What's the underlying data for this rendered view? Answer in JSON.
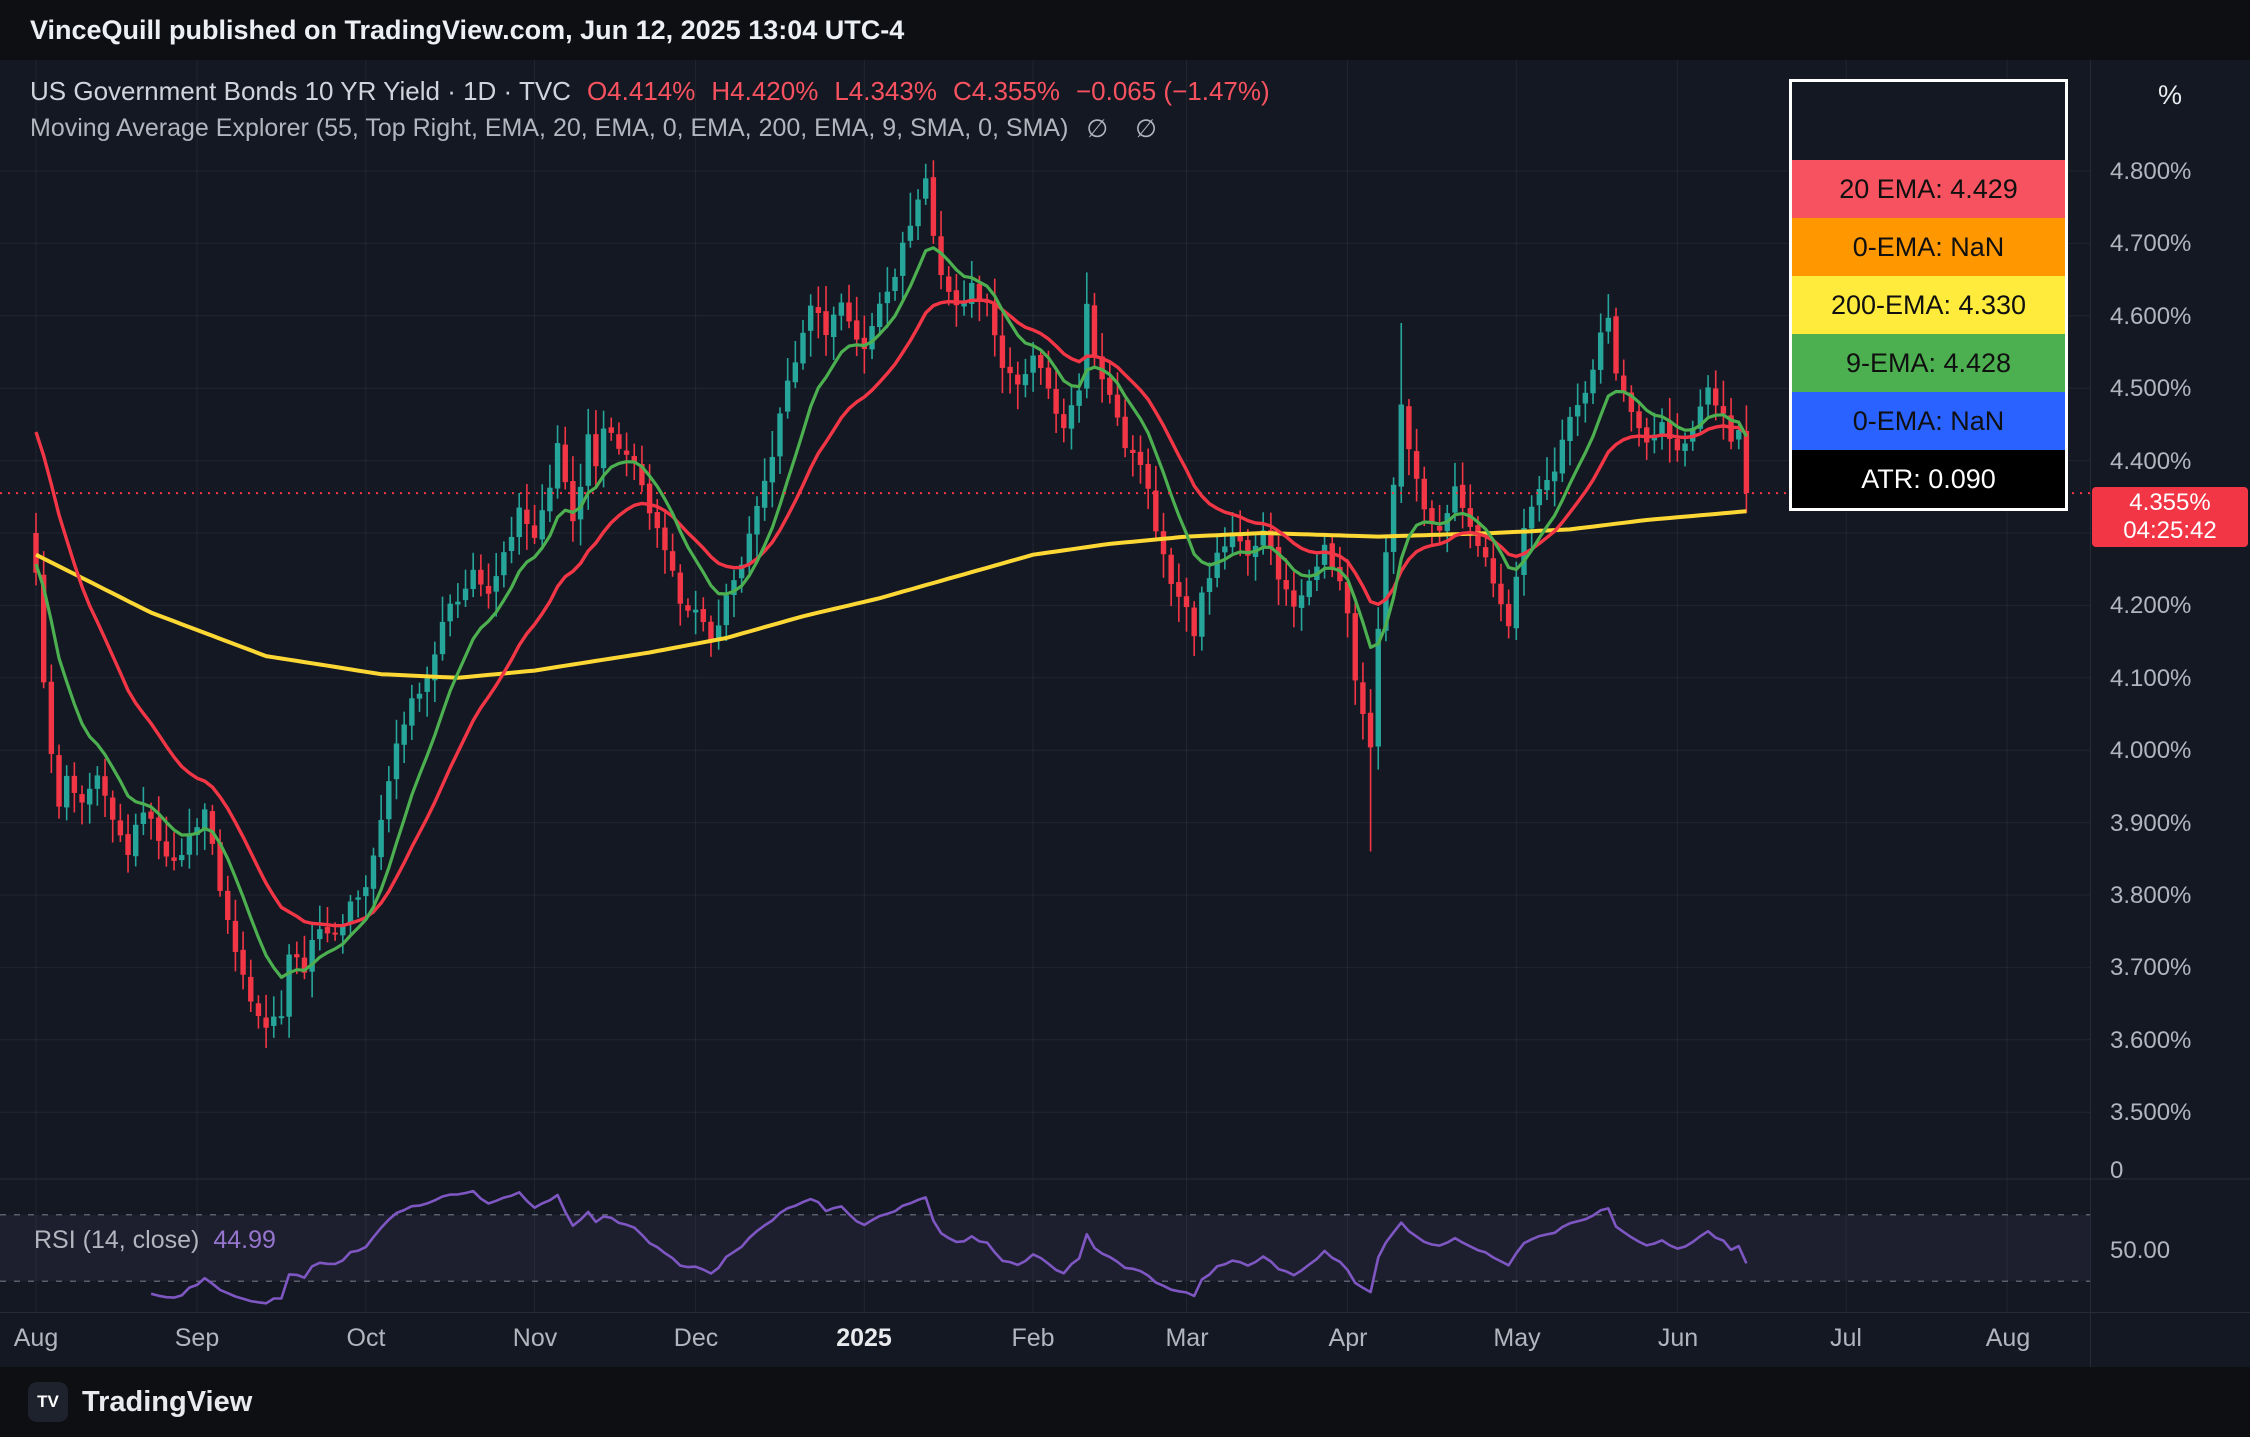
{
  "banner": {
    "text": "VinceQuill published on TradingView.com, Jun 12, 2025 13:04 UTC-4"
  },
  "title": {
    "symbol": "US Government Bonds 10 YR Yield · 1D · TVC",
    "open": "O4.414%",
    "high": "H4.420%",
    "low": "L4.343%",
    "close": "C4.355%",
    "change": "−0.065 (−1.47%)",
    "indicator": "Moving Average Explorer (55, Top Right, EMA, 20, EMA, 0, EMA, 200, EMA, 9, SMA, 0, SMA)",
    "hidden_icons": "∅ ∅"
  },
  "legend": {
    "rows": [
      {
        "label": "20 EMA: 4.429",
        "bg": "#f7525f",
        "fg": "#101010"
      },
      {
        "label": "0-EMA: NaN",
        "bg": "#ff9800",
        "fg": "#101010"
      },
      {
        "label": "200-EMA: 4.330",
        "bg": "#ffeb3b",
        "fg": "#101010"
      },
      {
        "label": "9-EMA: 4.428",
        "bg": "#4caf50",
        "fg": "#101010"
      },
      {
        "label": "0-EMA: NaN",
        "bg": "#2962ff",
        "fg": "#101010"
      },
      {
        "label": "ATR: 0.090",
        "bg": "#000000",
        "fg": "#ffffff"
      }
    ]
  },
  "price_axis": {
    "unit": "%",
    "labels": [
      "4.800%",
      "4.700%",
      "4.600%",
      "4.500%",
      "4.400%",
      "4.200%",
      "4.100%",
      "4.000%",
      "3.900%",
      "3.800%",
      "3.700%",
      "3.600%",
      "3.500%"
    ],
    "zero_label": "0",
    "rsi_label": "50.00",
    "badge": {
      "price": "4.355%",
      "countdown": "04:25:42"
    }
  },
  "time_axis": {
    "labels": [
      "Aug",
      "Sep",
      "Oct",
      "Nov",
      "Dec",
      "2025",
      "Feb",
      "Mar",
      "Apr",
      "May",
      "Jun",
      "Jul",
      "Aug"
    ]
  },
  "rsi_pane": {
    "label": "RSI (14, close)",
    "value": "44.99"
  },
  "footer": {
    "brand": "TradingView",
    "logo": "TV"
  },
  "colors": {
    "up_candle": "#26a69a",
    "down_candle": "#f23645",
    "ema20": "#f23645",
    "ema9": "#4caf50",
    "ema200": "#fdd835",
    "rsi_line": "#7e57c2",
    "price_line": "#f23645",
    "grid": "rgba(255,255,255,0.06)"
  },
  "chart_data": {
    "type": "candlestick",
    "title": "US Government Bonds 10 YR Yield, 1D, TVC",
    "ylabel": "Yield %",
    "ylim": [
      3.45,
      4.85
    ],
    "y_ticks": [
      4.8,
      4.7,
      4.6,
      4.5,
      4.4,
      4.3,
      4.2,
      4.1,
      4.0,
      3.9,
      3.8,
      3.7,
      3.6,
      3.5
    ],
    "last_price": 4.355,
    "total_days": 224,
    "months": [
      {
        "label": "Aug",
        "day": 0
      },
      {
        "label": "Sep",
        "day": 21
      },
      {
        "label": "Oct",
        "day": 43
      },
      {
        "label": "Nov",
        "day": 65
      },
      {
        "label": "Dec",
        "day": 86
      },
      {
        "label": "2025",
        "day": 108
      },
      {
        "label": "Feb",
        "day": 130
      },
      {
        "label": "Mar",
        "day": 150
      },
      {
        "label": "Apr",
        "day": 171
      },
      {
        "label": "May",
        "day": 193
      },
      {
        "label": "Jun",
        "day": 214
      },
      {
        "label": "Jul",
        "day": 236
      },
      {
        "label": "Aug",
        "day": 257
      }
    ],
    "close_anchors": [
      [
        0,
        4.24
      ],
      [
        1,
        4.1
      ],
      [
        2,
        3.99
      ],
      [
        3,
        3.92
      ],
      [
        4,
        3.96
      ],
      [
        6,
        3.92
      ],
      [
        8,
        3.96
      ],
      [
        10,
        3.9
      ],
      [
        12,
        3.86
      ],
      [
        14,
        3.92
      ],
      [
        16,
        3.88
      ],
      [
        18,
        3.84
      ],
      [
        20,
        3.88
      ],
      [
        22,
        3.92
      ],
      [
        24,
        3.81
      ],
      [
        26,
        3.72
      ],
      [
        28,
        3.66
      ],
      [
        30,
        3.62
      ],
      [
        32,
        3.64
      ],
      [
        33,
        3.72
      ],
      [
        35,
        3.7
      ],
      [
        37,
        3.76
      ],
      [
        39,
        3.74
      ],
      [
        41,
        3.79
      ],
      [
        43,
        3.81
      ],
      [
        45,
        3.9
      ],
      [
        47,
        4.01
      ],
      [
        49,
        4.07
      ],
      [
        51,
        4.1
      ],
      [
        53,
        4.18
      ],
      [
        55,
        4.21
      ],
      [
        57,
        4.25
      ],
      [
        59,
        4.21
      ],
      [
        61,
        4.27
      ],
      [
        63,
        4.33
      ],
      [
        65,
        4.29
      ],
      [
        67,
        4.36
      ],
      [
        68,
        4.43
      ],
      [
        69,
        4.37
      ],
      [
        70,
        4.31
      ],
      [
        71,
        4.36
      ],
      [
        72,
        4.43
      ],
      [
        73,
        4.4
      ],
      [
        74,
        4.45
      ],
      [
        76,
        4.42
      ],
      [
        78,
        4.39
      ],
      [
        80,
        4.33
      ],
      [
        82,
        4.27
      ],
      [
        84,
        4.21
      ],
      [
        86,
        4.19
      ],
      [
        88,
        4.15
      ],
      [
        90,
        4.21
      ],
      [
        92,
        4.26
      ],
      [
        94,
        4.33
      ],
      [
        96,
        4.41
      ],
      [
        98,
        4.51
      ],
      [
        100,
        4.57
      ],
      [
        101,
        4.62
      ],
      [
        103,
        4.58
      ],
      [
        105,
        4.62
      ],
      [
        107,
        4.57
      ],
      [
        108,
        4.55
      ],
      [
        110,
        4.62
      ],
      [
        112,
        4.66
      ],
      [
        114,
        4.73
      ],
      [
        116,
        4.79
      ],
      [
        117,
        4.71
      ],
      [
        118,
        4.66
      ],
      [
        120,
        4.61
      ],
      [
        122,
        4.64
      ],
      [
        124,
        4.62
      ],
      [
        126,
        4.53
      ],
      [
        128,
        4.5
      ],
      [
        130,
        4.54
      ],
      [
        132,
        4.5
      ],
      [
        134,
        4.44
      ],
      [
        136,
        4.5
      ],
      [
        137,
        4.62
      ],
      [
        138,
        4.55
      ],
      [
        140,
        4.49
      ],
      [
        142,
        4.42
      ],
      [
        144,
        4.4
      ],
      [
        146,
        4.31
      ],
      [
        148,
        4.23
      ],
      [
        150,
        4.2
      ],
      [
        151,
        4.16
      ],
      [
        152,
        4.22
      ],
      [
        154,
        4.27
      ],
      [
        156,
        4.3
      ],
      [
        158,
        4.27
      ],
      [
        160,
        4.31
      ],
      [
        162,
        4.24
      ],
      [
        164,
        4.2
      ],
      [
        166,
        4.24
      ],
      [
        168,
        4.28
      ],
      [
        170,
        4.23
      ],
      [
        171,
        4.19
      ],
      [
        172,
        4.1
      ],
      [
        174,
        4.0
      ],
      [
        175,
        4.17
      ],
      [
        176,
        4.28
      ],
      [
        177,
        4.36
      ],
      [
        178,
        4.48
      ],
      [
        179,
        4.41
      ],
      [
        181,
        4.34
      ],
      [
        183,
        4.3
      ],
      [
        185,
        4.36
      ],
      [
        187,
        4.31
      ],
      [
        189,
        4.26
      ],
      [
        191,
        4.2
      ],
      [
        192,
        4.17
      ],
      [
        194,
        4.3
      ],
      [
        196,
        4.36
      ],
      [
        198,
        4.39
      ],
      [
        200,
        4.46
      ],
      [
        202,
        4.49
      ],
      [
        204,
        4.57
      ],
      [
        205,
        4.6
      ],
      [
        206,
        4.52
      ],
      [
        208,
        4.46
      ],
      [
        210,
        4.42
      ],
      [
        212,
        4.46
      ],
      [
        214,
        4.41
      ],
      [
        216,
        4.45
      ],
      [
        218,
        4.5
      ],
      [
        220,
        4.46
      ],
      [
        221,
        4.42
      ],
      [
        222,
        4.44
      ],
      [
        223,
        4.355
      ]
    ],
    "wick_overrides": [
      {
        "day": 30,
        "low": 3.595
      },
      {
        "day": 116,
        "high": 4.81
      },
      {
        "day": 114,
        "high": 4.77
      },
      {
        "day": 137,
        "high": 4.66
      },
      {
        "day": 151,
        "low": 4.13
      },
      {
        "day": 174,
        "low": 3.86
      },
      {
        "day": 178,
        "high": 4.59
      },
      {
        "day": 192,
        "low": 4.16
      },
      {
        "day": 205,
        "high": 4.63
      },
      {
        "day": 223,
        "low": 4.343
      }
    ],
    "ema200_anchors": [
      [
        0,
        4.27
      ],
      [
        15,
        4.19
      ],
      [
        30,
        4.13
      ],
      [
        45,
        4.105
      ],
      [
        55,
        4.1
      ],
      [
        65,
        4.11
      ],
      [
        80,
        4.135
      ],
      [
        90,
        4.155
      ],
      [
        100,
        4.185
      ],
      [
        110,
        4.21
      ],
      [
        120,
        4.24
      ],
      [
        130,
        4.27
      ],
      [
        140,
        4.285
      ],
      [
        150,
        4.295
      ],
      [
        160,
        4.3
      ],
      [
        175,
        4.295
      ],
      [
        190,
        4.3
      ],
      [
        200,
        4.305
      ],
      [
        210,
        4.318
      ],
      [
        223,
        4.33
      ]
    ],
    "series_meta": [
      {
        "name": "20 EMA",
        "value": 4.429,
        "color": "#f23645"
      },
      {
        "name": "9 EMA",
        "value": 4.428,
        "color": "#4caf50"
      },
      {
        "name": "200 EMA",
        "value": 4.33,
        "color": "#fdd835"
      }
    ],
    "rsi": {
      "period": 14,
      "current": 44.99,
      "bands": [
        70,
        30
      ]
    }
  }
}
